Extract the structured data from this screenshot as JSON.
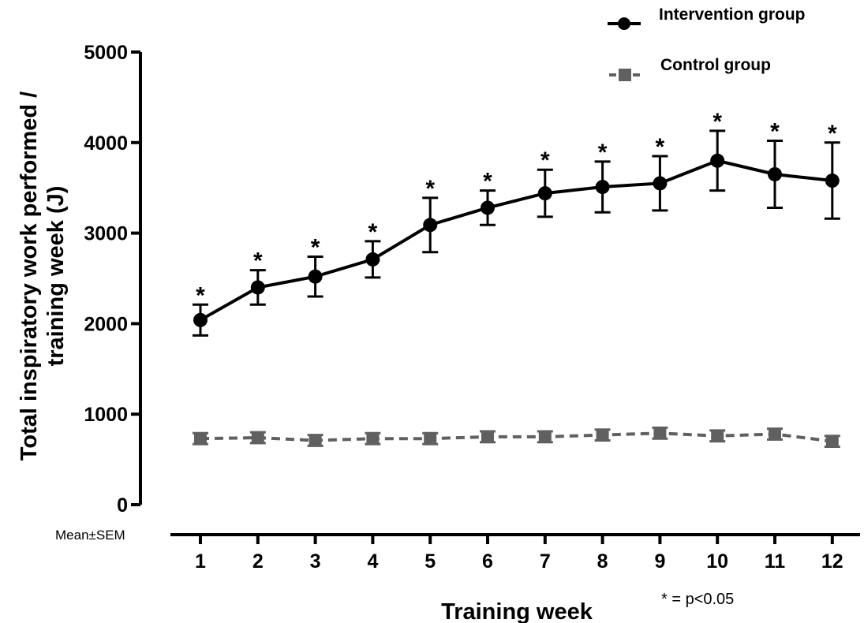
{
  "chart_data": {
    "type": "line",
    "xlabel": "Training week",
    "ylabel_line1": "Total inspiratory work performed /",
    "ylabel_line2": "training week (J)",
    "ylim": [
      0,
      5000
    ],
    "yticks": [
      0,
      1000,
      2000,
      3000,
      4000,
      5000
    ],
    "x": [
      1,
      2,
      3,
      4,
      5,
      6,
      7,
      8,
      9,
      10,
      11,
      12
    ],
    "series": [
      {
        "name": "Intervention group",
        "values": [
          2040,
          2400,
          2520,
          2710,
          3090,
          3280,
          3440,
          3510,
          3550,
          3800,
          3650,
          3580
        ],
        "error": [
          170,
          190,
          220,
          200,
          300,
          190,
          260,
          280,
          300,
          330,
          370,
          420
        ],
        "marker": "circle",
        "line_style": "solid",
        "color": "#000000"
      },
      {
        "name": "Control group",
        "values": [
          730,
          740,
          710,
          730,
          730,
          750,
          750,
          770,
          790,
          760,
          780,
          700
        ],
        "error": [
          60,
          60,
          60,
          60,
          60,
          60,
          60,
          60,
          60,
          60,
          60,
          60
        ],
        "marker": "square",
        "line_style": "dashed",
        "color": "#606060"
      }
    ],
    "significance_marker": "*",
    "significant_weeks": [
      1,
      2,
      3,
      4,
      5,
      6,
      7,
      8,
      9,
      10,
      11,
      12
    ],
    "legend_position": "top-right",
    "grid": false,
    "annotation": "* = p<0.05",
    "stat_note": "Mean±SEM"
  }
}
